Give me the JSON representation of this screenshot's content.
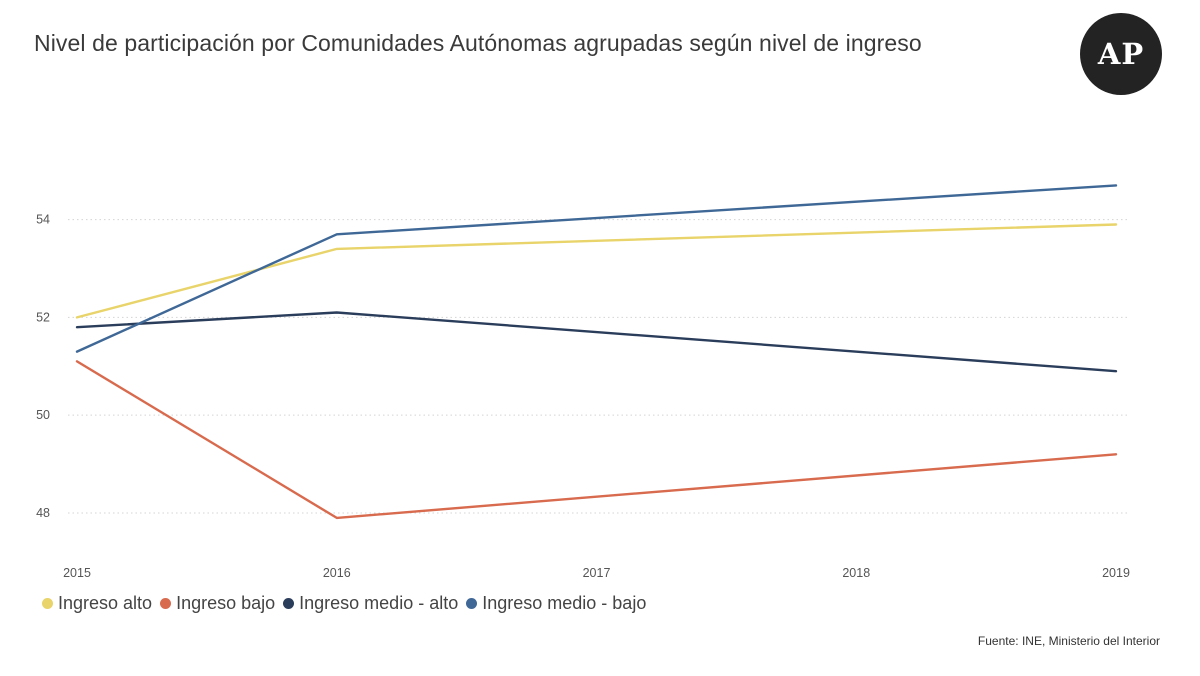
{
  "header": {
    "title": "Nivel de participación por Comunidades Autónomas agrupadas según nivel de ingreso",
    "logo_text": "AP"
  },
  "footer": {
    "source": "Fuente: INE, Ministerio del Interior"
  },
  "chart_data": {
    "type": "line",
    "title": "Nivel de participación por Comunidades Autónomas agrupadas según nivel de ingreso",
    "xlabel": "",
    "ylabel": "",
    "x": [
      "2015",
      "2016",
      "2017",
      "2018",
      "2019"
    ],
    "ylim": [
      47.1,
      56.2
    ],
    "yticks": [
      48,
      50,
      52,
      54
    ],
    "grid": "horizontal-dotted",
    "legend_position": "bottom-left",
    "series": [
      {
        "name": "Ingreso alto",
        "color": "#e8d46a",
        "points": [
          [
            2015,
            52.0
          ],
          [
            2016,
            53.4
          ],
          [
            2019,
            53.9
          ]
        ]
      },
      {
        "name": "Ingreso bajo",
        "color": "#d86a4e",
        "points": [
          [
            2015,
            51.1
          ],
          [
            2016,
            47.9
          ],
          [
            2019,
            49.2
          ]
        ]
      },
      {
        "name": "Ingreso medio - alto",
        "color": "#2a3d5a",
        "points": [
          [
            2015,
            51.8
          ],
          [
            2016,
            52.1
          ],
          [
            2019,
            50.9
          ]
        ]
      },
      {
        "name": "Ingreso medio - bajo",
        "color": "#3f6897",
        "points": [
          [
            2015,
            51.3
          ],
          [
            2016,
            53.7
          ],
          [
            2019,
            54.7
          ]
        ]
      }
    ]
  }
}
